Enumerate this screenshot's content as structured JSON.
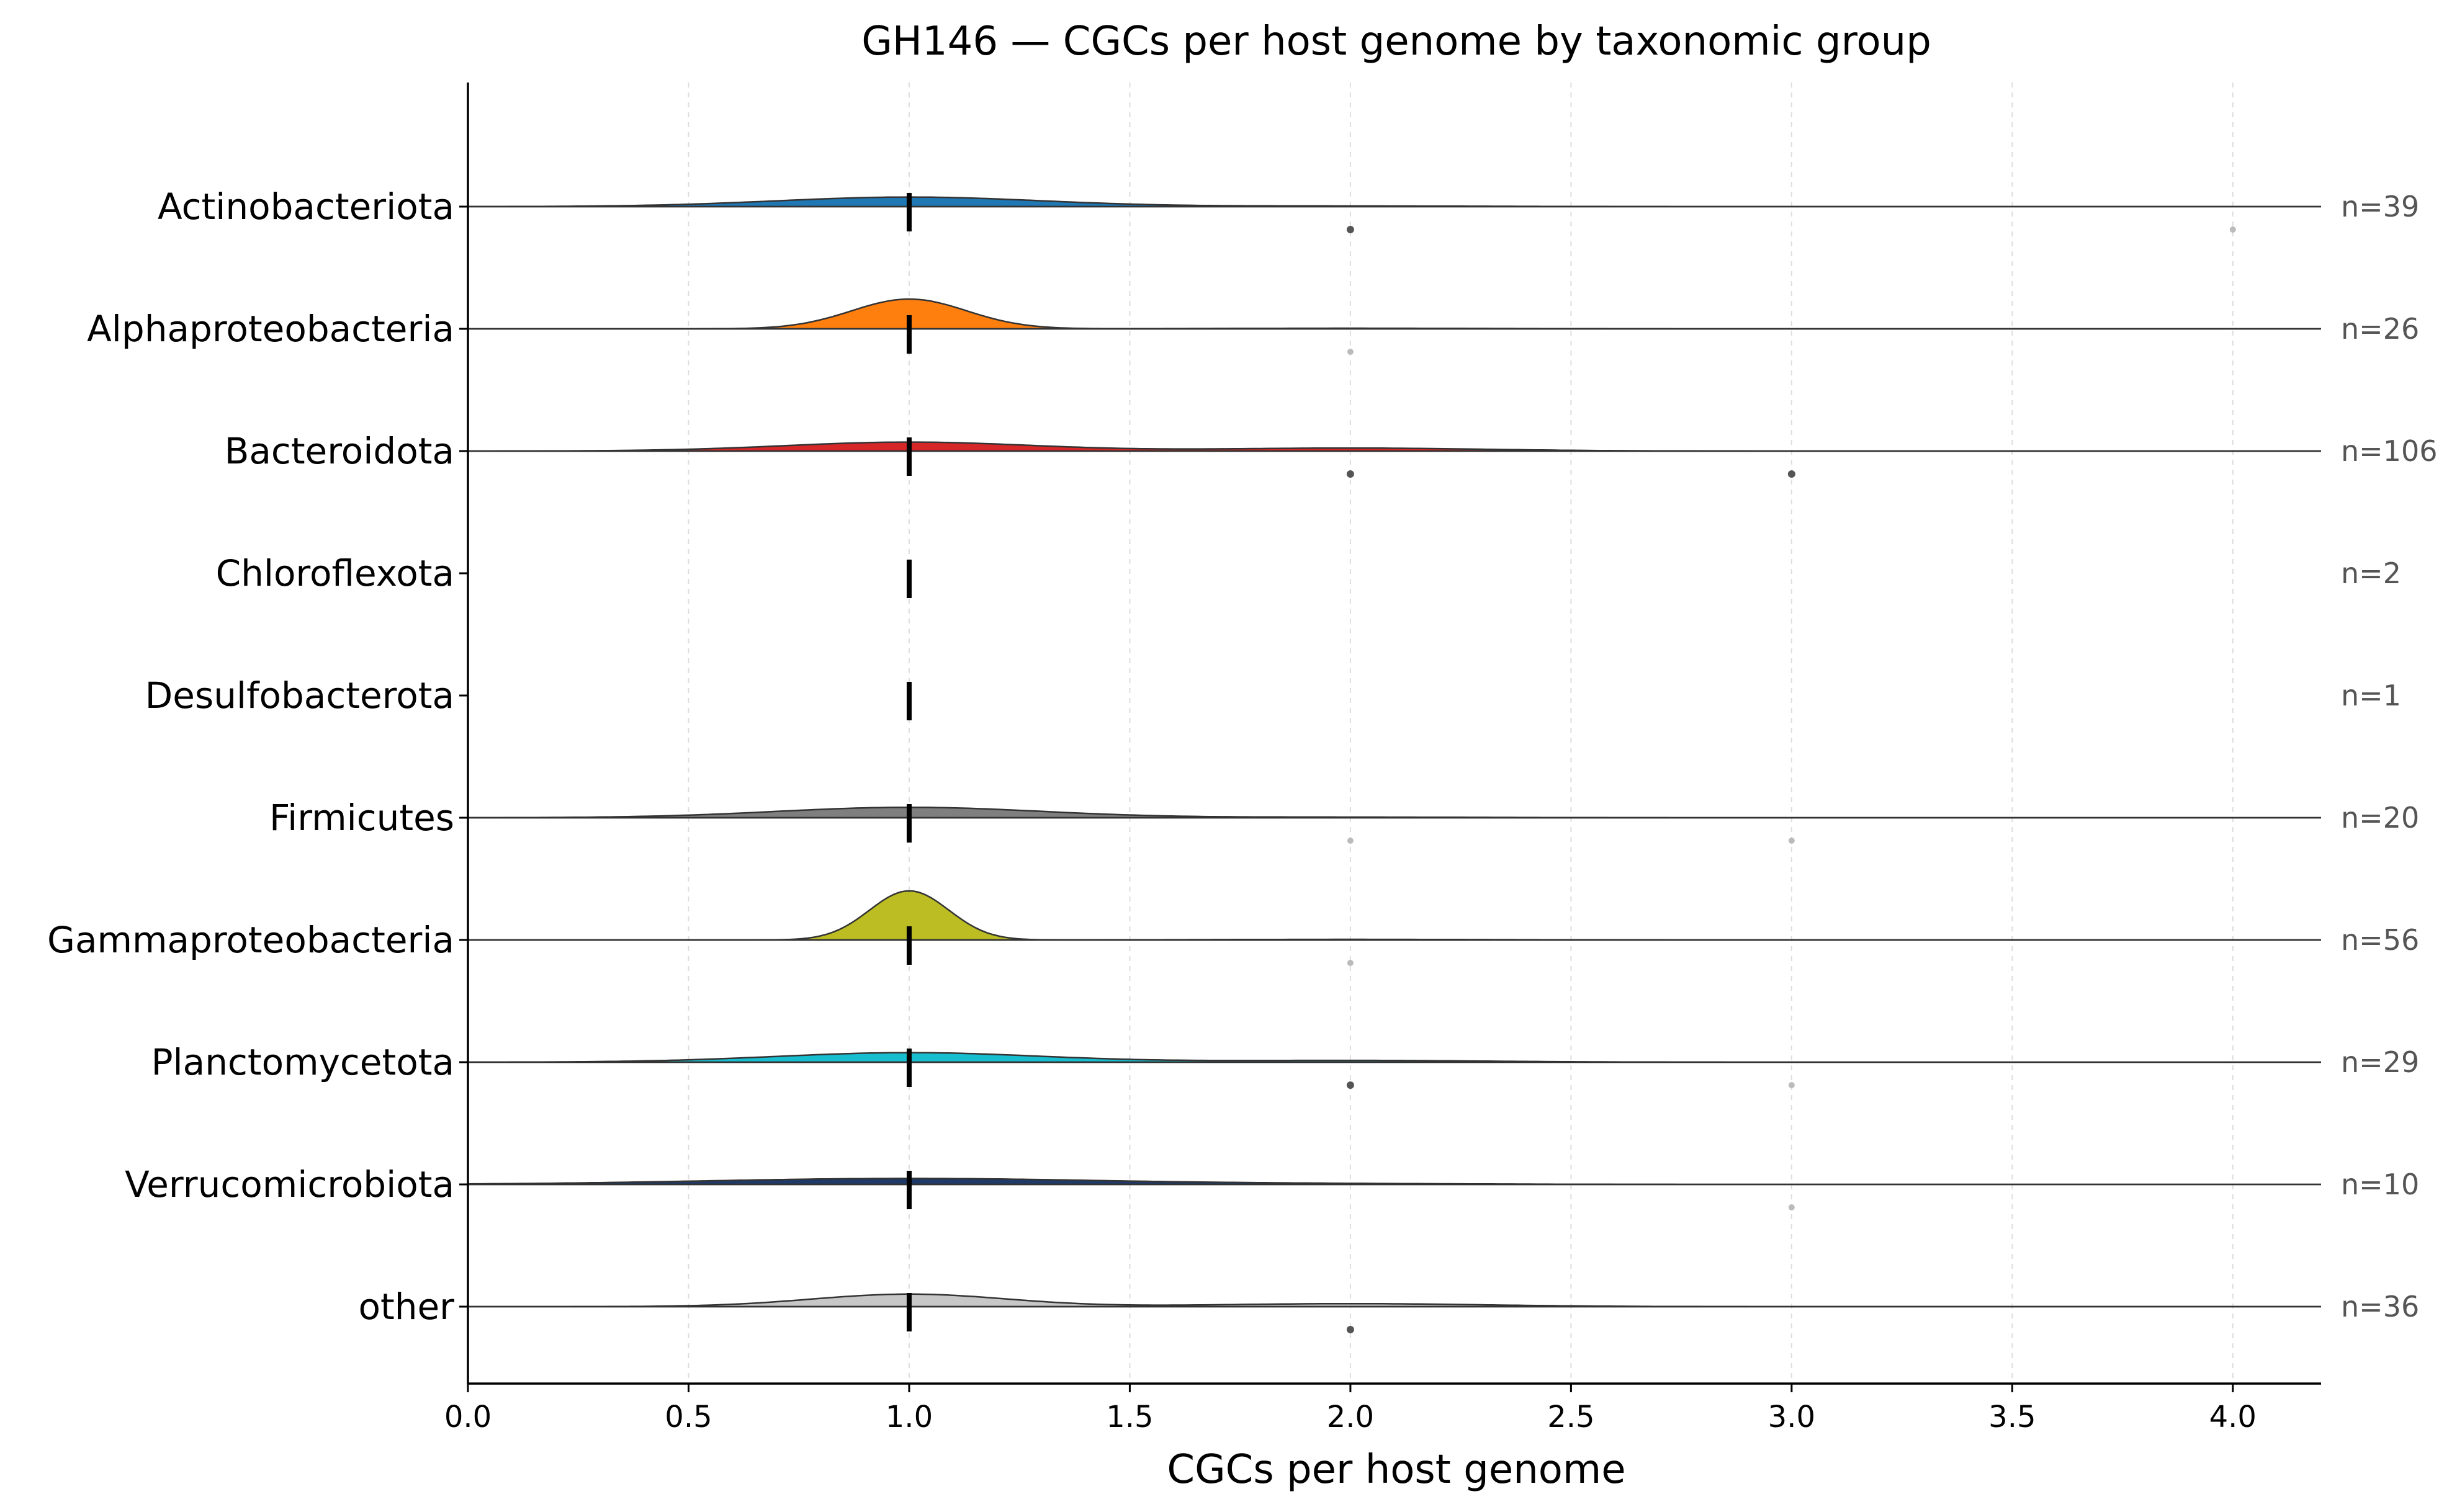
{
  "chart_data": {
    "type": "ridgeline",
    "title": "GH146 — CGCs per host genome by taxonomic group",
    "xlabel": "CGCs per host genome",
    "ylabel": "",
    "xlim": [
      0.0,
      4.2
    ],
    "x_ticks": [
      "0.0",
      "0.5",
      "1.0",
      "1.5",
      "2.0",
      "2.5",
      "3.0",
      "3.5",
      "4.0"
    ],
    "grid": "vertical dashed",
    "groups": [
      {
        "name": "Actinobacteriota",
        "n_label": "n=39",
        "count": 39,
        "median": 1.0,
        "color": "#1f77b4",
        "peak": 0.32,
        "width": 0.3,
        "tail": 0.02,
        "outliers": [
          {
            "x": 2.0,
            "dark": true
          },
          {
            "x": 4.0,
            "dark": false
          }
        ]
      },
      {
        "name": "Alphaproteobacteria",
        "n_label": "n=26",
        "count": 26,
        "median": 1.0,
        "color": "#ff7f0e",
        "peak": 1.0,
        "width": 0.13,
        "tail": 0.02,
        "outliers": [
          {
            "x": 2.0,
            "dark": false
          }
        ]
      },
      {
        "name": "Bacteroidota",
        "n_label": "n=106",
        "count": 106,
        "median": 1.0,
        "color": "#d62728",
        "peak": 0.3,
        "width": 0.28,
        "tail": 0.1,
        "outliers": [
          {
            "x": 2.0,
            "dark": true
          },
          {
            "x": 3.0,
            "dark": true
          }
        ]
      },
      {
        "name": "Chloroflexota",
        "n_label": "n=2",
        "count": 2,
        "median": 1.0,
        "color": "#9467bd",
        "peak": 0,
        "width": 0.1,
        "tail": 0,
        "outliers": []
      },
      {
        "name": "Desulfobacterota",
        "n_label": "n=1",
        "count": 1,
        "median": 1.0,
        "color": "#8c564b",
        "peak": 0,
        "width": 0.1,
        "tail": 0,
        "outliers": []
      },
      {
        "name": "Firmicutes",
        "n_label": "n=20",
        "count": 20,
        "median": 1.0,
        "color": "#7f7f7f",
        "peak": 0.35,
        "width": 0.3,
        "tail": 0.02,
        "outliers": [
          {
            "x": 2.0,
            "dark": false
          },
          {
            "x": 3.0,
            "dark": false
          }
        ]
      },
      {
        "name": "Gammaproteobacteria",
        "n_label": "n=56",
        "count": 56,
        "median": 1.0,
        "color": "#bcbd22",
        "peak": 1.65,
        "width": 0.09,
        "tail": 0.02,
        "outliers": [
          {
            "x": 2.0,
            "dark": false
          }
        ]
      },
      {
        "name": "Planctomycetota",
        "n_label": "n=29",
        "count": 29,
        "median": 1.0,
        "color": "#17becf",
        "peak": 0.32,
        "width": 0.3,
        "tail": 0.06,
        "outliers": [
          {
            "x": 2.0,
            "dark": true
          },
          {
            "x": 3.0,
            "dark": false
          }
        ]
      },
      {
        "name": "Verrucomicrobiota",
        "n_label": "n=10",
        "count": 10,
        "median": 1.0,
        "color": "#1f3a68",
        "peak": 0.2,
        "width": 0.45,
        "tail": 0.02,
        "outliers": [
          {
            "x": 3.0,
            "dark": false
          }
        ]
      },
      {
        "name": "other",
        "n_label": "n=36",
        "count": 36,
        "median": 1.0,
        "color": "#c7c7c7",
        "peak": 0.42,
        "width": 0.22,
        "tail": 0.1,
        "outliers": [
          {
            "x": 2.0,
            "dark": true
          }
        ]
      }
    ]
  }
}
